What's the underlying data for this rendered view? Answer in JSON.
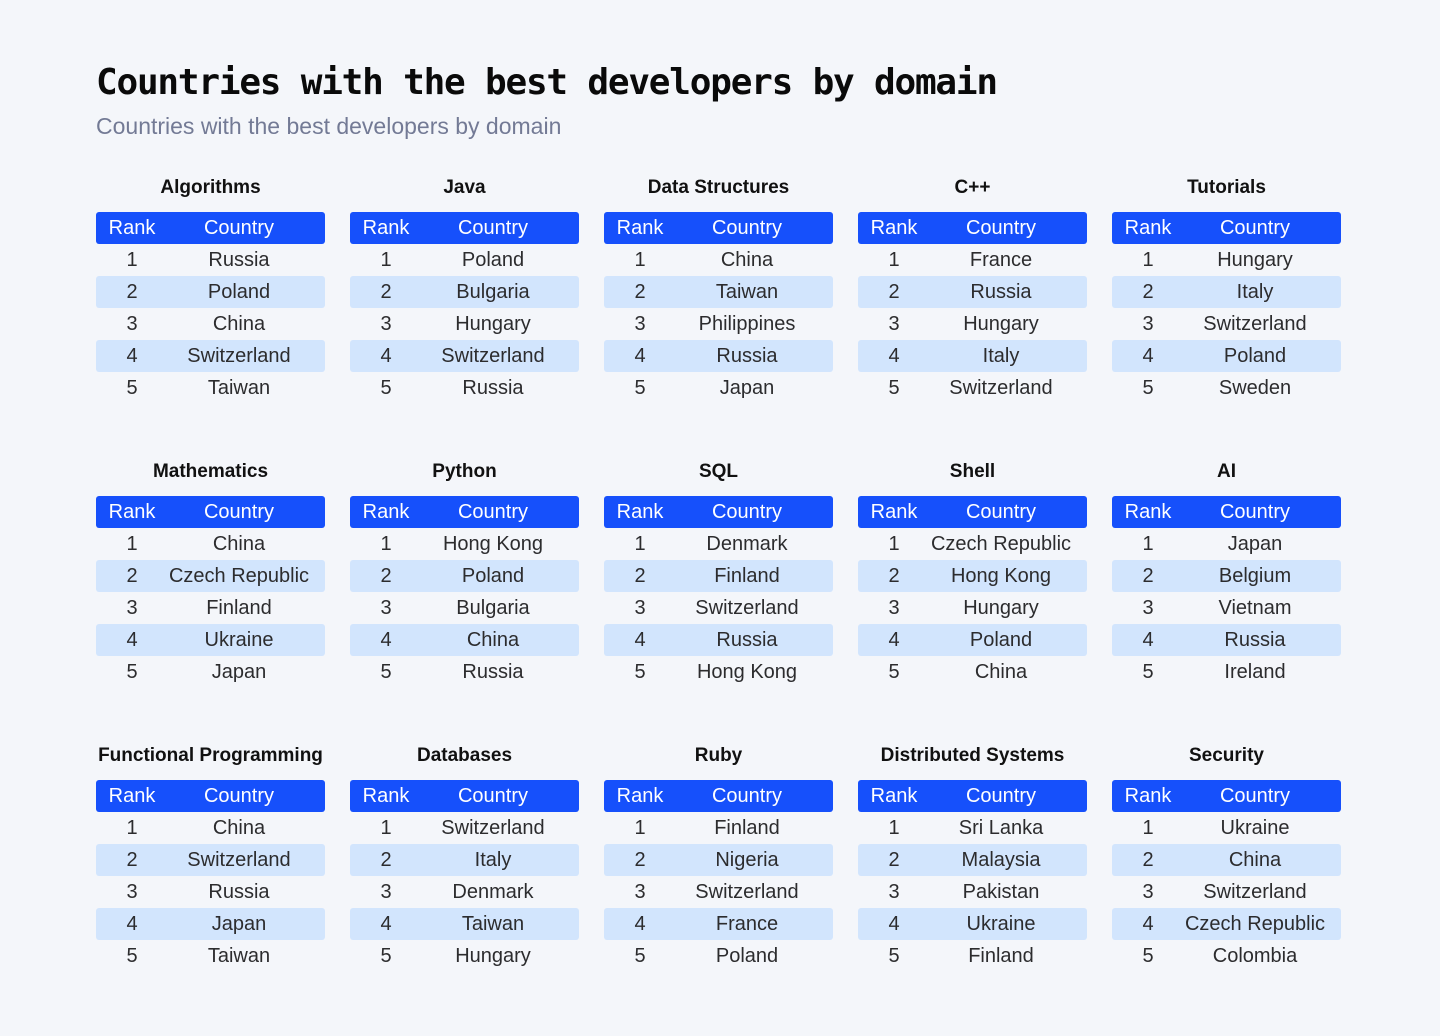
{
  "header": {
    "title": "Countries with the best developers by domain",
    "subtitle": "Countries with the best developers by domain"
  },
  "colors": {
    "header_bg": "#1650fb",
    "alt_row_bg": "#d2e5fd",
    "page_bg": "#f4f6fa"
  },
  "columns": {
    "rank": "Rank",
    "country": "Country"
  },
  "tables": [
    {
      "domain": "Algorithms",
      "rows": [
        [
          "1",
          "Russia"
        ],
        [
          "2",
          "Poland"
        ],
        [
          "3",
          "China"
        ],
        [
          "4",
          "Switzerland"
        ],
        [
          "5",
          "Taiwan"
        ]
      ]
    },
    {
      "domain": "Java",
      "rows": [
        [
          "1",
          "Poland"
        ],
        [
          "2",
          "Bulgaria"
        ],
        [
          "3",
          "Hungary"
        ],
        [
          "4",
          "Switzerland"
        ],
        [
          "5",
          "Russia"
        ]
      ]
    },
    {
      "domain": "Data Structures",
      "rows": [
        [
          "1",
          "China"
        ],
        [
          "2",
          "Taiwan"
        ],
        [
          "3",
          "Philippines"
        ],
        [
          "4",
          "Russia"
        ],
        [
          "5",
          "Japan"
        ]
      ]
    },
    {
      "domain": "C++",
      "rows": [
        [
          "1",
          "France"
        ],
        [
          "2",
          "Russia"
        ],
        [
          "3",
          "Hungary"
        ],
        [
          "4",
          "Italy"
        ],
        [
          "5",
          "Switzerland"
        ]
      ]
    },
    {
      "domain": "Tutorials",
      "rows": [
        [
          "1",
          "Hungary"
        ],
        [
          "2",
          "Italy"
        ],
        [
          "3",
          "Switzerland"
        ],
        [
          "4",
          "Poland"
        ],
        [
          "5",
          "Sweden"
        ]
      ]
    },
    {
      "domain": "Mathematics",
      "rows": [
        [
          "1",
          "China"
        ],
        [
          "2",
          "Czech Republic"
        ],
        [
          "3",
          "Finland"
        ],
        [
          "4",
          "Ukraine"
        ],
        [
          "5",
          "Japan"
        ]
      ]
    },
    {
      "domain": "Python",
      "rows": [
        [
          "1",
          "Hong Kong"
        ],
        [
          "2",
          "Poland"
        ],
        [
          "3",
          "Bulgaria"
        ],
        [
          "4",
          "China"
        ],
        [
          "5",
          "Russia"
        ]
      ]
    },
    {
      "domain": "SQL",
      "rows": [
        [
          "1",
          "Denmark"
        ],
        [
          "2",
          "Finland"
        ],
        [
          "3",
          "Switzerland"
        ],
        [
          "4",
          "Russia"
        ],
        [
          "5",
          "Hong Kong"
        ]
      ]
    },
    {
      "domain": "Shell",
      "rows": [
        [
          "1",
          "Czech Republic"
        ],
        [
          "2",
          "Hong Kong"
        ],
        [
          "3",
          "Hungary"
        ],
        [
          "4",
          "Poland"
        ],
        [
          "5",
          "China"
        ]
      ]
    },
    {
      "domain": "AI",
      "rows": [
        [
          "1",
          "Japan"
        ],
        [
          "2",
          "Belgium"
        ],
        [
          "3",
          "Vietnam"
        ],
        [
          "4",
          "Russia"
        ],
        [
          "5",
          "Ireland"
        ]
      ]
    },
    {
      "domain": "Functional Programming",
      "rows": [
        [
          "1",
          "China"
        ],
        [
          "2",
          "Switzerland"
        ],
        [
          "3",
          "Russia"
        ],
        [
          "4",
          "Japan"
        ],
        [
          "5",
          "Taiwan"
        ]
      ]
    },
    {
      "domain": "Databases",
      "rows": [
        [
          "1",
          "Switzerland"
        ],
        [
          "2",
          "Italy"
        ],
        [
          "3",
          "Denmark"
        ],
        [
          "4",
          "Taiwan"
        ],
        [
          "5",
          "Hungary"
        ]
      ]
    },
    {
      "domain": "Ruby",
      "rows": [
        [
          "1",
          "Finland"
        ],
        [
          "2",
          "Nigeria"
        ],
        [
          "3",
          "Switzerland"
        ],
        [
          "4",
          "France"
        ],
        [
          "5",
          "Poland"
        ]
      ]
    },
    {
      "domain": "Distributed Systems",
      "rows": [
        [
          "1",
          "Sri Lanka"
        ],
        [
          "2",
          "Malaysia"
        ],
        [
          "3",
          "Pakistan"
        ],
        [
          "4",
          "Ukraine"
        ],
        [
          "5",
          "Finland"
        ]
      ]
    },
    {
      "domain": "Security",
      "rows": [
        [
          "1",
          "Ukraine"
        ],
        [
          "2",
          "China"
        ],
        [
          "3",
          "Switzerland"
        ],
        [
          "4",
          "Czech Republic"
        ],
        [
          "5",
          "Colombia"
        ]
      ]
    }
  ]
}
